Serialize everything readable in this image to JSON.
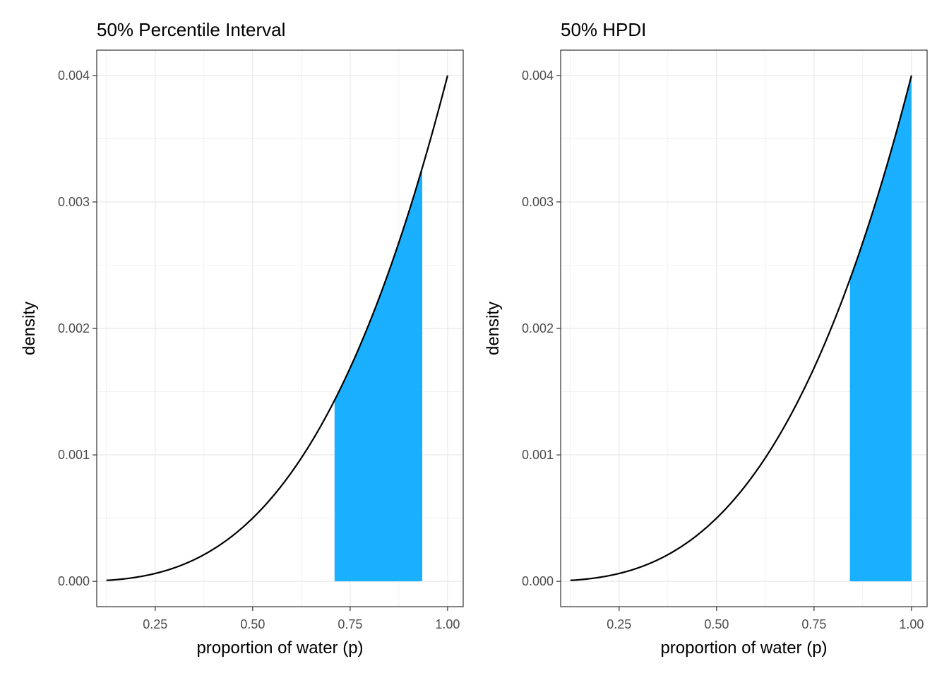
{
  "chart_data": [
    {
      "type": "area",
      "title": "50% Percentile Interval",
      "xlabel": "proportion of water (p)",
      "ylabel": "density",
      "xlim": [
        0.1,
        1.04
      ],
      "ylim": [
        -0.0002,
        0.0042
      ],
      "xticks": [
        0.25,
        0.5,
        0.75,
        1.0
      ],
      "xtick_labels": [
        "0.25",
        "0.50",
        "0.75",
        "1.00"
      ],
      "yticks": [
        0.0,
        0.001,
        0.002,
        0.003,
        0.004
      ],
      "ytick_labels": [
        "0.000",
        "0.001",
        "0.002",
        "0.003",
        "0.004"
      ],
      "grid": true,
      "curve": {
        "x": [
          0.125,
          0.2,
          0.25,
          0.3,
          0.35,
          0.4,
          0.45,
          0.5,
          0.55,
          0.6,
          0.65,
          0.7,
          0.75,
          0.8,
          0.85,
          0.9,
          0.95,
          1.0
        ],
        "y": [
          7.8e-06,
          3.2e-05,
          6.25e-05,
          0.000108,
          0.000172,
          0.000256,
          0.000365,
          0.0005,
          0.000666,
          0.000864,
          0.001099,
          0.001372,
          0.001688,
          0.002048,
          0.002457,
          0.002916,
          0.00343,
          0.004
        ]
      },
      "shaded_interval": [
        0.71,
        0.935
      ],
      "shade_color": "#1AB0FF"
    },
    {
      "type": "area",
      "title": "50% HPDI",
      "xlabel": "proportion of water (p)",
      "ylabel": "density",
      "xlim": [
        0.1,
        1.04
      ],
      "ylim": [
        -0.0002,
        0.0042
      ],
      "xticks": [
        0.25,
        0.5,
        0.75,
        1.0
      ],
      "xtick_labels": [
        "0.25",
        "0.50",
        "0.75",
        "1.00"
      ],
      "yticks": [
        0.0,
        0.001,
        0.002,
        0.003,
        0.004
      ],
      "ytick_labels": [
        "0.000",
        "0.001",
        "0.002",
        "0.003",
        "0.004"
      ],
      "grid": true,
      "curve": {
        "x": [
          0.125,
          0.2,
          0.25,
          0.3,
          0.35,
          0.4,
          0.45,
          0.5,
          0.55,
          0.6,
          0.65,
          0.7,
          0.75,
          0.8,
          0.85,
          0.9,
          0.95,
          1.0
        ],
        "y": [
          7.8e-06,
          3.2e-05,
          6.25e-05,
          0.000108,
          0.000172,
          0.000256,
          0.000365,
          0.0005,
          0.000666,
          0.000864,
          0.001099,
          0.001372,
          0.001688,
          0.002048,
          0.002457,
          0.002916,
          0.00343,
          0.004
        ]
      },
      "shaded_interval": [
        0.842,
        1.0
      ],
      "shade_color": "#1AB0FF"
    }
  ]
}
